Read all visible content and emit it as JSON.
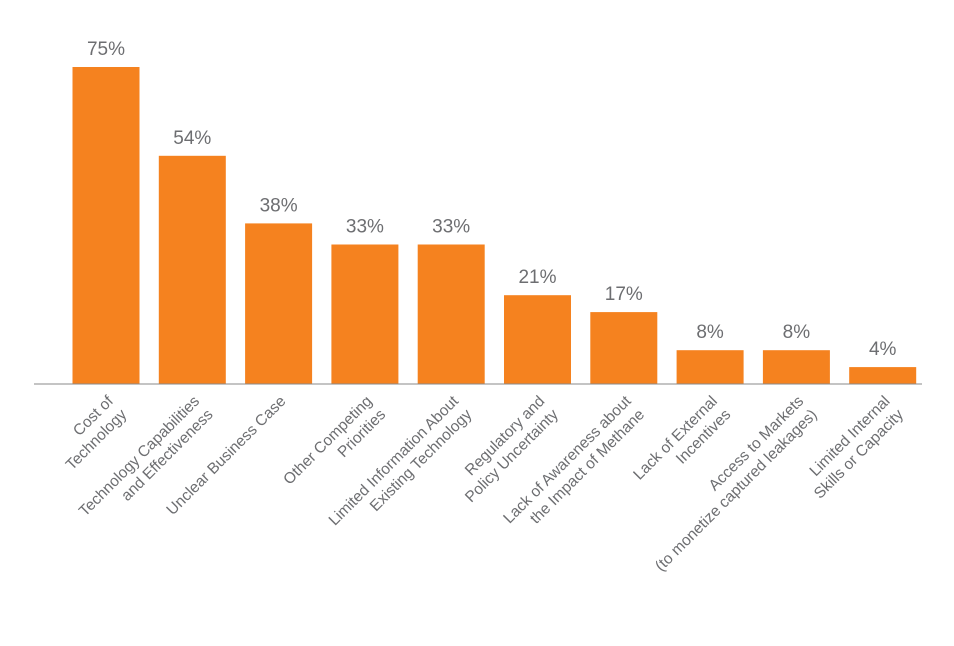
{
  "chart_data": {
    "type": "bar",
    "title": "",
    "xlabel": "",
    "ylabel": "",
    "ylim": [
      0,
      75
    ],
    "grid": false,
    "legend": "none",
    "bar_color": "#F5821F",
    "label_color": "#6d6e71",
    "categories": [
      [
        "Cost of",
        "Technology"
      ],
      [
        "Technology Capabilities",
        "and Effectiveness"
      ],
      [
        "Unclear Business Case"
      ],
      [
        "Other Competing",
        "Priorities"
      ],
      [
        "Limited Information About",
        "Existing Technology"
      ],
      [
        "Regulatory and",
        "Policy Uncertainty"
      ],
      [
        "Lack of Awareness about",
        "the Impact of Methane"
      ],
      [
        "Lack of External",
        "Incentives"
      ],
      [
        "Access to Markets",
        "(to monetize captured leakages)"
      ],
      [
        "Limited Internal",
        "Skills or Capacity"
      ]
    ],
    "values": [
      75,
      54,
      38,
      33,
      33,
      21,
      17,
      8,
      8,
      4
    ],
    "value_labels": [
      "75%",
      "54%",
      "38%",
      "33%",
      "33%",
      "21%",
      "17%",
      "8%",
      "8%",
      "4%"
    ]
  }
}
